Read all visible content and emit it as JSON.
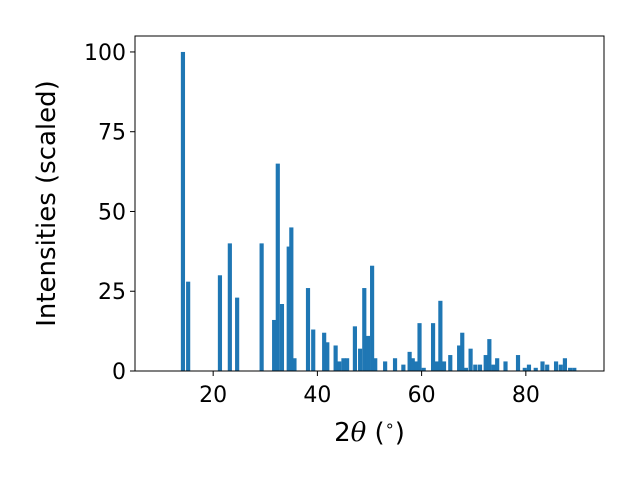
{
  "chart_data": {
    "type": "bar",
    "xlabel_prefix": "2",
    "xlabel_theta": "θ",
    "xlabel_suffix": " (",
    "xlabel_degree": "∘",
    "xlabel_close": ")",
    "ylabel": "Intensities (scaled)",
    "xlim": [
      5,
      95
    ],
    "ylim": [
      0,
      105
    ],
    "xticks": [
      20,
      40,
      60,
      80
    ],
    "yticks": [
      0,
      25,
      50,
      75,
      100
    ],
    "bar_width": 0.8,
    "bar_color": "#1f77b4",
    "grid": false,
    "x": [
      14.2,
      15.2,
      21.3,
      23.2,
      24.6,
      29.3,
      31.7,
      32.4,
      33.2,
      34.5,
      35.0,
      35.6,
      38.2,
      39.2,
      41.3,
      41.9,
      43.5,
      44.2,
      45.0,
      45.7,
      47.2,
      48.2,
      49.0,
      49.7,
      50.5,
      51.1,
      53.0,
      54.9,
      56.5,
      57.7,
      58.3,
      59.0,
      59.6,
      60.4,
      62.2,
      62.9,
      63.6,
      64.3,
      65.5,
      67.2,
      67.8,
      68.5,
      69.4,
      70.3,
      71.2,
      72.3,
      73.0,
      73.8,
      74.5,
      76.1,
      78.5,
      79.8,
      80.6,
      81.9,
      83.2,
      84.1,
      85.8,
      86.7,
      87.5,
      88.5,
      89.3
    ],
    "values": [
      100,
      28,
      30,
      40,
      23,
      40,
      16,
      65,
      21,
      39,
      45,
      4,
      26,
      13,
      12,
      9,
      8,
      3,
      4,
      4,
      14,
      7,
      26,
      11,
      33,
      4,
      3,
      4,
      2,
      6,
      4,
      3,
      15,
      1,
      15,
      3,
      22,
      3,
      5,
      8,
      12,
      1,
      7,
      2,
      2,
      5,
      10,
      2,
      4,
      3,
      5,
      1,
      2,
      1,
      3,
      2,
      3,
      2,
      4,
      1,
      1
    ]
  }
}
